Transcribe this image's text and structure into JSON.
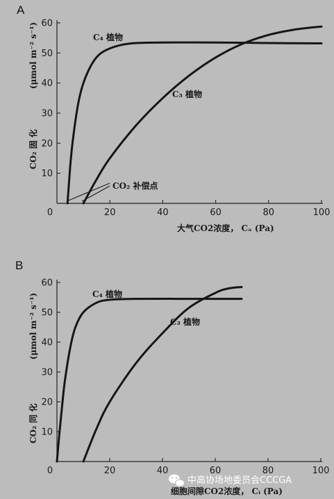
{
  "chart_data": [
    {
      "type": "line",
      "panel": "A",
      "xlabel": "大气CO2浓度， Ca (Pa)",
      "ylabel": "CO2 固 化 (μmol m⁻² s⁻¹)",
      "xlim": [
        0,
        100
      ],
      "ylim": [
        0,
        60
      ],
      "xticks": [
        0,
        20,
        40,
        60,
        80,
        100
      ],
      "yticks": [
        10,
        20,
        30,
        40,
        50,
        60
      ],
      "grid": false,
      "series": [
        {
          "name": "C4 植物",
          "x": [
            4,
            5,
            6,
            8,
            10,
            13,
            16,
            20,
            25,
            30,
            40,
            60,
            80,
            100
          ],
          "y": [
            0,
            12,
            21,
            33,
            40,
            46,
            49.5,
            51.5,
            52.8,
            53.3,
            53.5,
            53.5,
            53.3,
            53.2
          ]
        },
        {
          "name": "C3 植物",
          "x": [
            10,
            15,
            20,
            30,
            40,
            50,
            60,
            70,
            80,
            90,
            100
          ],
          "y": [
            0,
            8,
            15,
            26,
            35,
            42.5,
            48.5,
            53,
            56,
            57.8,
            58.8
          ]
        }
      ],
      "annotation": "CO2 补偿点"
    },
    {
      "type": "line",
      "panel": "B",
      "xlabel": "细胞间隙CO2浓度， Ci (Pa)",
      "ylabel": "CO2 同 化 (μmol m⁻² s⁻¹)",
      "xlim": [
        0,
        100
      ],
      "ylim": [
        0,
        60
      ],
      "xticks": [
        0,
        20,
        40,
        60,
        80,
        100
      ],
      "yticks": [
        10,
        20,
        30,
        40,
        50,
        60
      ],
      "grid": false,
      "series": [
        {
          "name": "C4 植物",
          "x": [
            0,
            1,
            2,
            3,
            5,
            7,
            10,
            15,
            20,
            30,
            50,
            70
          ],
          "y": [
            0,
            10,
            19,
            27,
            38,
            45,
            50,
            53.2,
            54.2,
            54.5,
            54.5,
            54.5
          ]
        },
        {
          "name": "C3 植物",
          "x": [
            10,
            15,
            20,
            30,
            40,
            50,
            60,
            65,
            70
          ],
          "y": [
            0,
            11,
            20,
            33,
            43,
            51.5,
            56.5,
            58,
            58.5
          ]
        }
      ]
    }
  ],
  "labels": {
    "panel_a": "A",
    "panel_b": "B",
    "a_ylabel_unit": "(μmol m⁻² s⁻¹)",
    "a_ylabel_main": "CO₂ 固   化",
    "b_ylabel_unit": "(μmol m⁻² s⁻¹)",
    "b_ylabel_main": "CO₂ 同   化",
    "a_c4": "C₄ 植物",
    "a_c3": "C₃ 植物",
    "a_comp": "CO₂ 补偿点",
    "b_c4": "C₄ 植物",
    "b_c3": "C₃ 植物",
    "a_xlabel": "大气CO2浓度， Cₐ (Pa)",
    "b_xlabel": "细胞间隙CO2浓度， Cᵢ (Pa)"
  },
  "watermark": {
    "icon": "wechat-icon",
    "text": "中高协场地委员会CCCGA"
  }
}
